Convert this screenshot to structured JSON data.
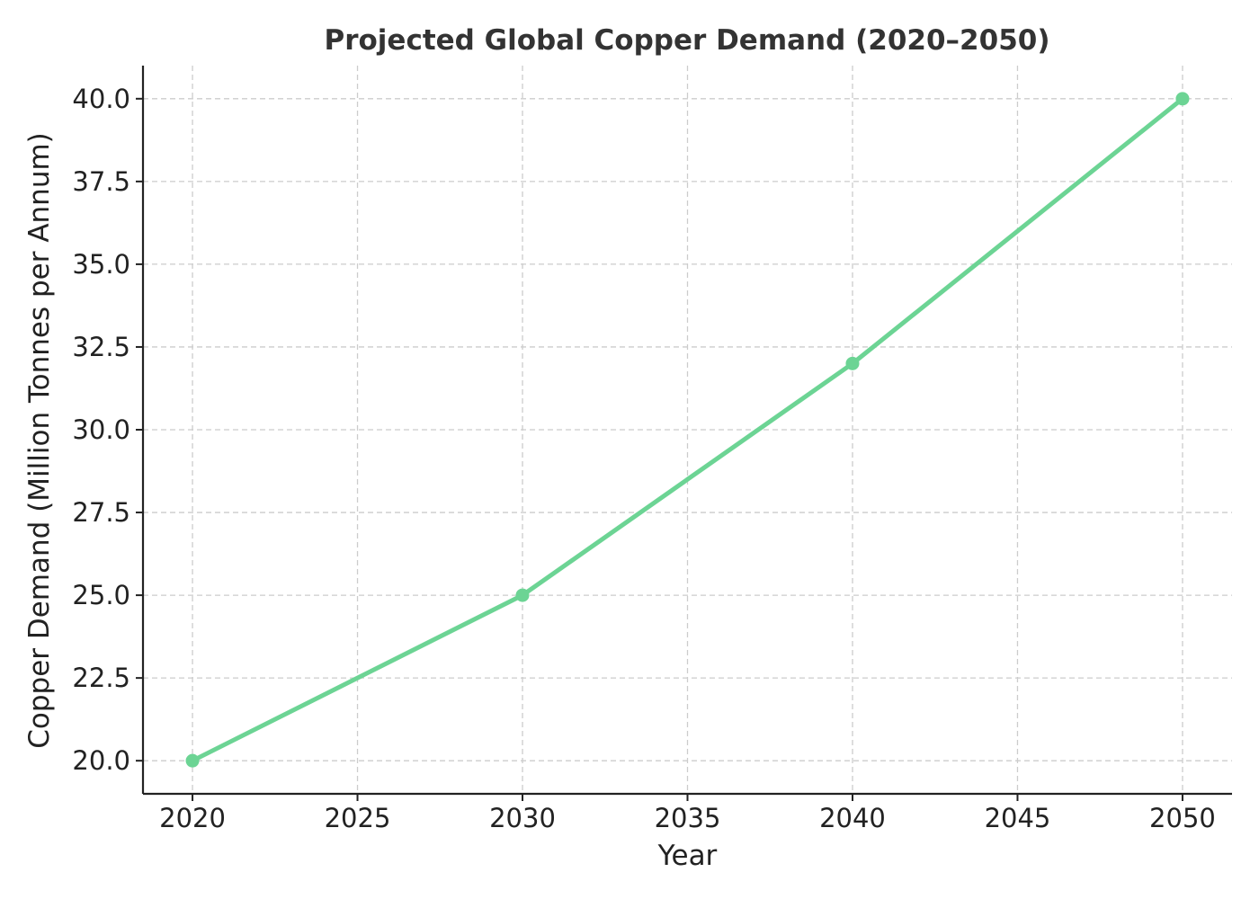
{
  "chart_data": {
    "type": "line",
    "title": "Projected Global Copper Demand (2020–2050)",
    "xlabel": "Year",
    "ylabel": "Copper Demand (Million Tonnes per Annum)",
    "x": [
      2020,
      2030,
      2040,
      2050
    ],
    "series": [
      {
        "values": [
          20.0,
          25.0,
          32.0,
          40.0
        ],
        "color": "#6cd494"
      }
    ],
    "xlim": [
      2018.5,
      2051.5
    ],
    "ylim": [
      19.0,
      41.0
    ],
    "x_ticks": [
      2020,
      2025,
      2030,
      2035,
      2040,
      2045,
      2050
    ],
    "x_tick_labels": [
      "2020",
      "2025",
      "2030",
      "2035",
      "2040",
      "2045",
      "2050"
    ],
    "y_ticks": [
      20.0,
      22.5,
      25.0,
      27.5,
      30.0,
      32.5,
      35.0,
      37.5,
      40.0
    ],
    "y_tick_labels": [
      "20.0",
      "22.5",
      "25.0",
      "27.5",
      "30.0",
      "32.5",
      "35.0",
      "37.5",
      "40.0"
    ],
    "grid": true,
    "marker": "circle"
  }
}
